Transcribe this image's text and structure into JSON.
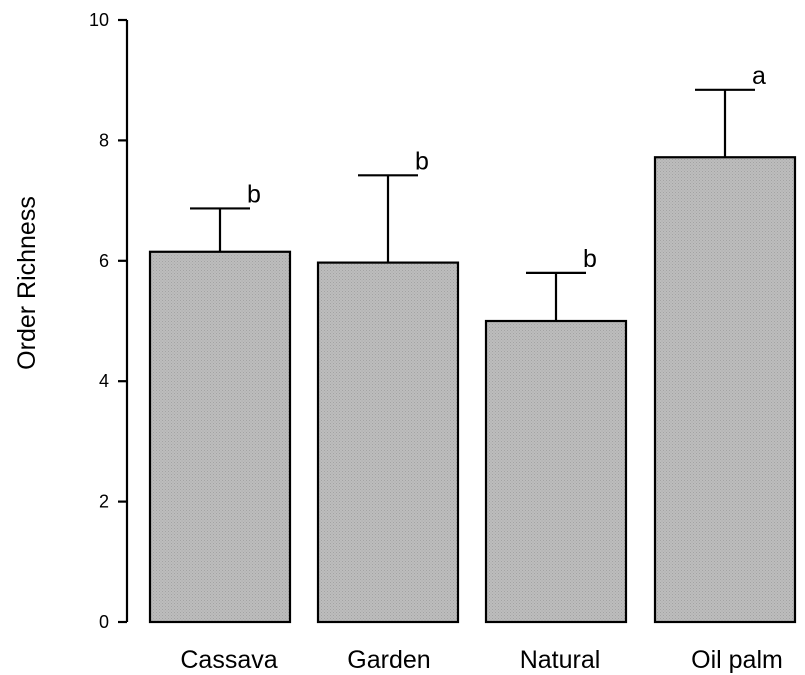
{
  "chart_data": {
    "type": "bar",
    "title": "",
    "xlabel": "",
    "ylabel": "Order Richness",
    "ylim": [
      0,
      10
    ],
    "yticks": [
      0,
      2,
      4,
      6,
      8,
      10
    ],
    "grid": false,
    "legend": "none",
    "categories": [
      "Cassava",
      "Garden",
      "Natural",
      "Oil palm"
    ],
    "values": [
      6.15,
      5.97,
      5.0,
      7.72
    ],
    "error_upper": [
      0.72,
      1.45,
      0.8,
      1.12
    ],
    "significance_letters": [
      "b",
      "b",
      "b",
      "a"
    ],
    "bar_color": "#b5b5b5"
  }
}
